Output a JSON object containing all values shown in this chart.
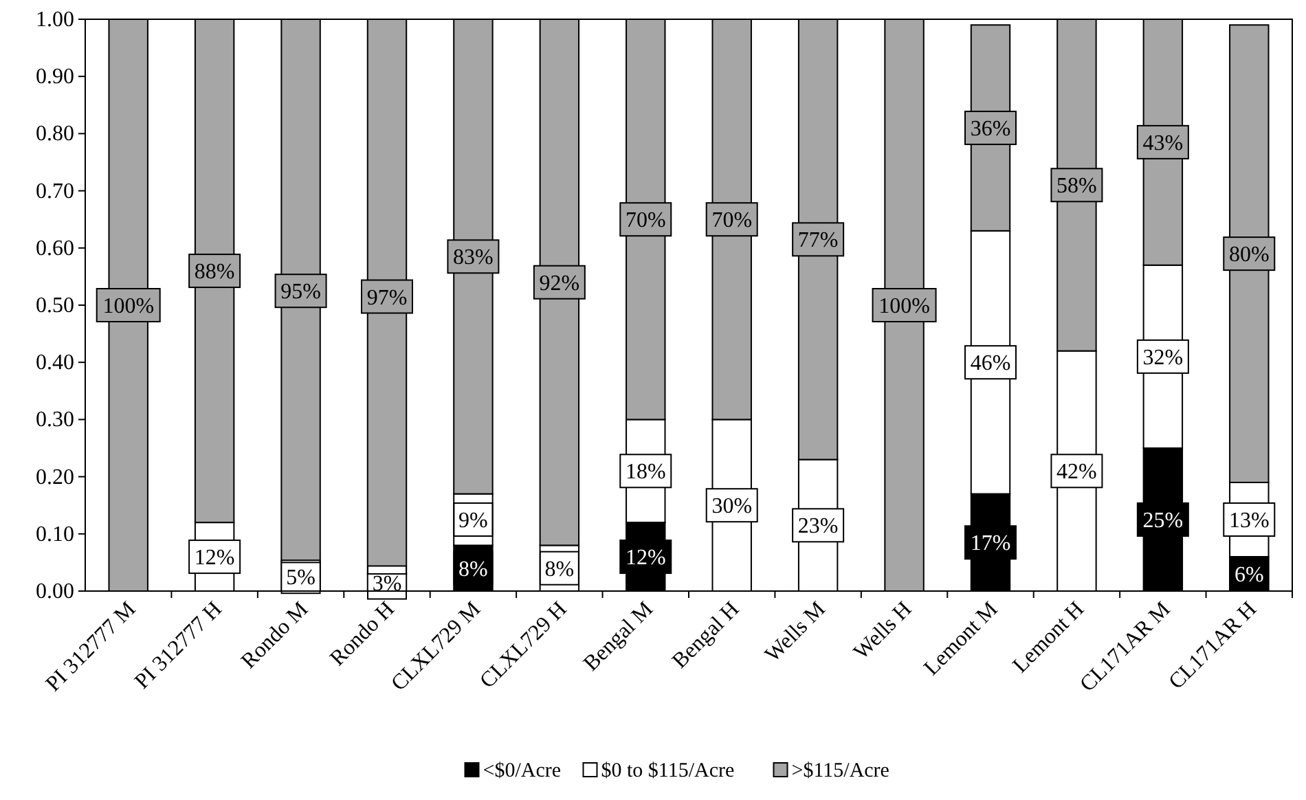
{
  "chart_data": {
    "type": "bar",
    "stacked": true,
    "categories": [
      "PI 312777 M",
      "PI 312777 H",
      "Rondo M",
      "Rondo H",
      "CLXL729 M",
      "CLXL729 H",
      "Bengal M",
      "Bengal H",
      "Wells M",
      "Wells H",
      "Lemont M",
      "Lemont H",
      "CL171AR M",
      "CL171AR H"
    ],
    "series": [
      {
        "name": "<$0/Acre",
        "color": "#000000",
        "values": [
          0,
          0,
          0,
          0,
          0.08,
          0,
          0.12,
          0,
          0,
          0,
          0.17,
          0,
          0.25,
          0.06
        ],
        "value_labels": [
          null,
          null,
          null,
          null,
          "8%",
          null,
          "12%",
          null,
          null,
          null,
          "17%",
          null,
          "25%",
          "6%"
        ]
      },
      {
        "name": "$0 to $115/Acre",
        "color": "#ffffff",
        "values": [
          0,
          0.12,
          0.05,
          0.03,
          0.09,
          0.08,
          0.18,
          0.3,
          0.23,
          0,
          0.46,
          0.42,
          0.32,
          0.13
        ],
        "value_labels": [
          null,
          "12%",
          "5%",
          "3%",
          "9%",
          "8%",
          "18%",
          "30%",
          "23%",
          null,
          "46%",
          "42%",
          "32%",
          "13%"
        ]
      },
      {
        "name": ">$115/Acre",
        "color": "#a6a6a6",
        "values": [
          1.0,
          0.88,
          0.95,
          0.97,
          0.83,
          0.92,
          0.7,
          0.7,
          0.77,
          1.0,
          0.36,
          0.58,
          0.43,
          0.8
        ],
        "value_labels": [
          "100%",
          "88%",
          "95%",
          "97%",
          "83%",
          "92%",
          "70%",
          "70%",
          "77%",
          "100%",
          "36%",
          "58%",
          "43%",
          "80%"
        ]
      }
    ],
    "ylim": [
      0,
      1
    ],
    "yticks": [
      {
        "value": 0,
        "label": "0.00"
      },
      {
        "value": 0.1,
        "label": "0.10"
      },
      {
        "value": 0.2,
        "label": "0.20"
      },
      {
        "value": 0.3,
        "label": "0.30"
      },
      {
        "value": 0.4,
        "label": "0.40"
      },
      {
        "value": 0.5,
        "label": "0.50"
      },
      {
        "value": 0.6,
        "label": "0.60"
      },
      {
        "value": 0.7,
        "label": "0.70"
      },
      {
        "value": 0.8,
        "label": "0.80"
      },
      {
        "value": 0.9,
        "label": "0.90"
      },
      {
        "value": 1,
        "label": "1.00"
      }
    ],
    "grid": false,
    "legend": "bottom"
  }
}
